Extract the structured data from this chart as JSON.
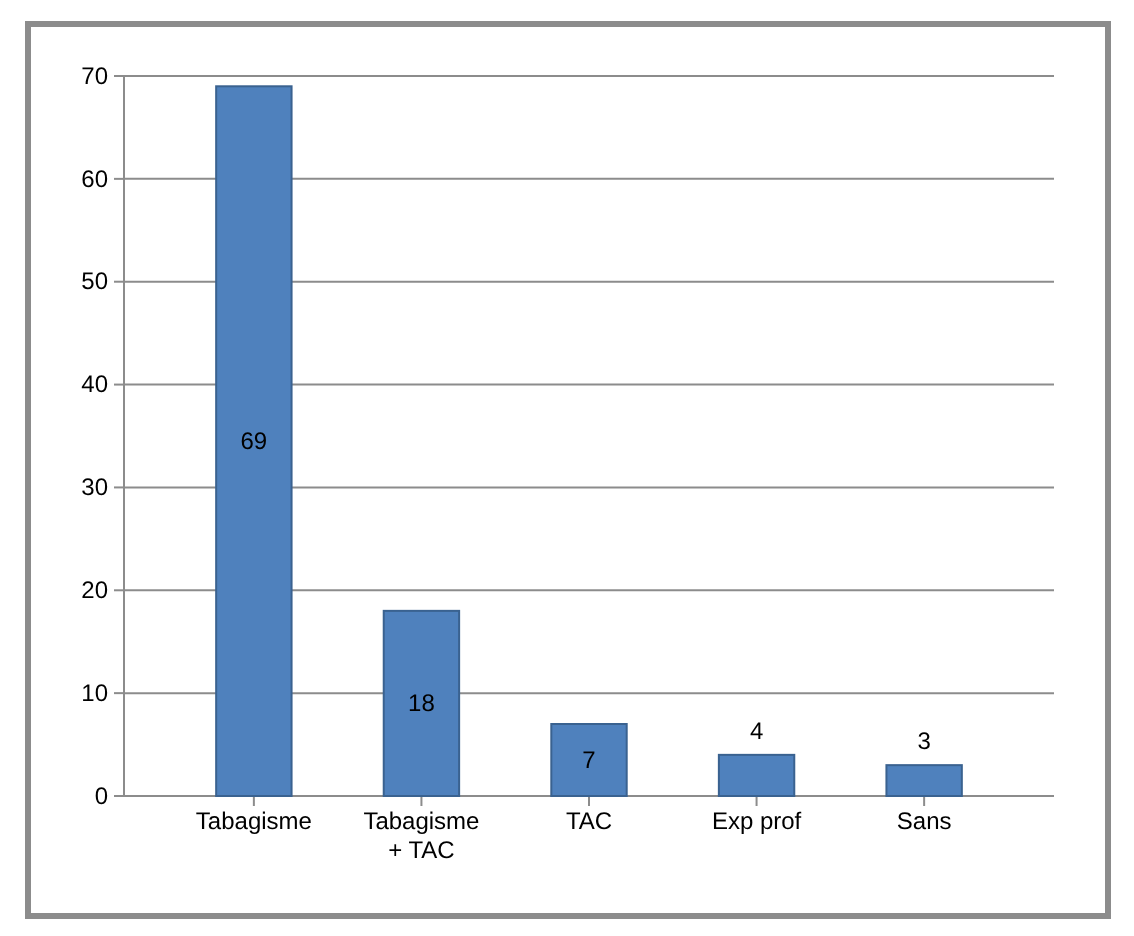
{
  "chart_data": {
    "type": "bar",
    "categories": [
      "Tabagisme",
      "Tabagisme + TAC",
      "TAC",
      "Exp prof",
      "Sans"
    ],
    "values": [
      69,
      18,
      7,
      4,
      3
    ],
    "color": "#4f81bd",
    "ylim": [
      0,
      70
    ],
    "yticks": [
      0,
      10,
      20,
      30,
      40,
      50,
      60,
      70
    ],
    "grid": "y",
    "data_labels": true
  }
}
